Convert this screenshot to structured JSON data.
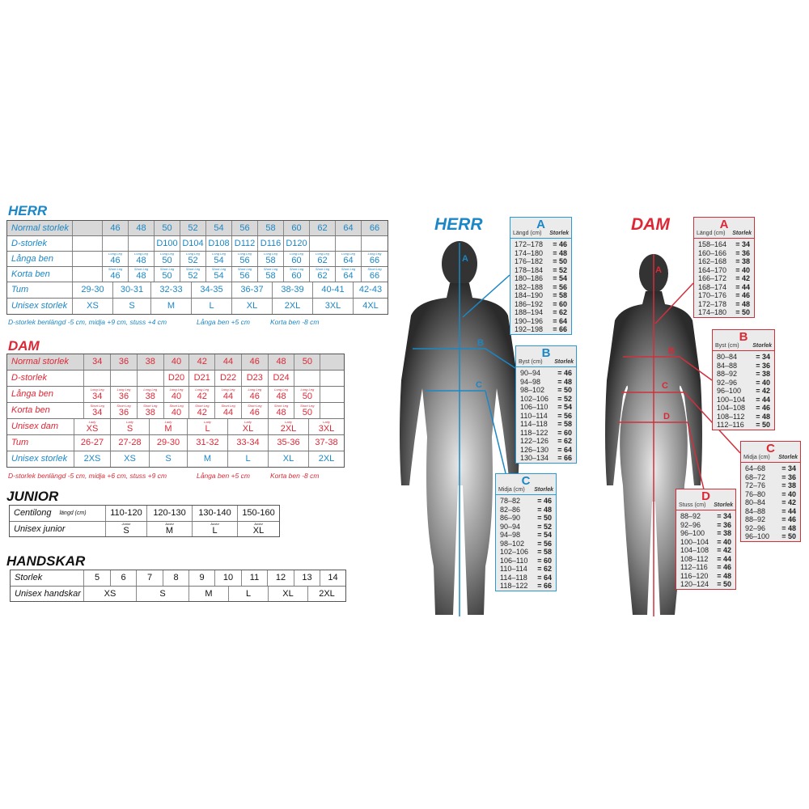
{
  "herr": {
    "title": "HERR",
    "rows": [
      {
        "label": "Normal storlek",
        "cells": [
          "",
          "46",
          "48",
          "50",
          "52",
          "54",
          "56",
          "58",
          "60",
          "62",
          "64",
          "66"
        ]
      },
      {
        "label": "D-storlek",
        "cells": [
          "",
          "",
          "",
          "D100",
          "D104",
          "D108",
          "D112",
          "D116",
          "D120",
          "",
          "",
          ""
        ]
      },
      {
        "label": "Långa ben",
        "cells": [
          "",
          {
            "tag": "Long Leg",
            "value": "46"
          },
          {
            "tag": "Long Leg",
            "value": "48"
          },
          {
            "tag": "Long Leg",
            "value": "50"
          },
          {
            "tag": "Long Leg",
            "value": "52"
          },
          {
            "tag": "Long Leg",
            "value": "54"
          },
          {
            "tag": "Long Leg",
            "value": "56"
          },
          {
            "tag": "Long Leg",
            "value": "58"
          },
          {
            "tag": "Long Leg",
            "value": "60"
          },
          {
            "tag": "Long Leg",
            "value": "62"
          },
          {
            "tag": "Long Leg",
            "value": "64"
          },
          {
            "tag": "Long Leg",
            "value": "66"
          }
        ]
      },
      {
        "label": "Korta ben",
        "cells": [
          "",
          {
            "tag": "Short Leg",
            "value": "46"
          },
          {
            "tag": "Short Leg",
            "value": "48"
          },
          {
            "tag": "Short Leg",
            "value": "50"
          },
          {
            "tag": "Short Leg",
            "value": "52"
          },
          {
            "tag": "Short Leg",
            "value": "54"
          },
          {
            "tag": "Short Leg",
            "value": "56"
          },
          {
            "tag": "Short Leg",
            "value": "58"
          },
          {
            "tag": "Short Leg",
            "value": "60"
          },
          {
            "tag": "Short Leg",
            "value": "62"
          },
          {
            "tag": "Short Leg",
            "value": "64"
          },
          {
            "tag": "Short Leg",
            "value": "66"
          }
        ]
      },
      {
        "label": "Tum",
        "cells": [
          "29-30",
          "30-31",
          "32-33",
          "34-35",
          "36-37",
          "38-39",
          "40-41",
          "42-43"
        ]
      },
      {
        "label": "Unisex storlek",
        "cells": [
          "XS",
          "S",
          "M",
          "L",
          "XL",
          "2XL",
          "3XL",
          "4XL"
        ]
      }
    ],
    "footnotes": [
      "D-storlek benlängd -5 cm, midja +9 cm, stuss +4 cm",
      "Långa ben +5 cm",
      "Korta ben -8 cm"
    ]
  },
  "dam": {
    "title": "DAM",
    "rows": [
      {
        "label": "Normal storlek",
        "cells": [
          "34",
          "36",
          "38",
          "40",
          "42",
          "44",
          "46",
          "48",
          "50",
          ""
        ]
      },
      {
        "label": "D-storlek",
        "cells": [
          "",
          "",
          "",
          "D20",
          "D21",
          "D22",
          "D23",
          "D24",
          "",
          ""
        ]
      },
      {
        "label": "Långa ben",
        "cells": [
          {
            "tag": "Long Leg",
            "value": "34"
          },
          {
            "tag": "Long Leg",
            "value": "36"
          },
          {
            "tag": "Long Leg",
            "value": "38"
          },
          {
            "tag": "Long Leg",
            "value": "40"
          },
          {
            "tag": "Long Leg",
            "value": "42"
          },
          {
            "tag": "Long Leg",
            "value": "44"
          },
          {
            "tag": "Long Leg",
            "value": "46"
          },
          {
            "tag": "Long Leg",
            "value": "48"
          },
          {
            "tag": "Long Leg",
            "value": "50"
          },
          ""
        ]
      },
      {
        "label": "Korta ben",
        "cells": [
          {
            "tag": "Short Leg",
            "value": "34"
          },
          {
            "tag": "Short Leg",
            "value": "36"
          },
          {
            "tag": "Short Leg",
            "value": "38"
          },
          {
            "tag": "Short Leg",
            "value": "40"
          },
          {
            "tag": "Short Leg",
            "value": "42"
          },
          {
            "tag": "Short Leg",
            "value": "44"
          },
          {
            "tag": "Short Leg",
            "value": "46"
          },
          {
            "tag": "Short Leg",
            "value": "48"
          },
          {
            "tag": "Short Leg",
            "value": "50"
          },
          ""
        ]
      },
      {
        "label": "Unisex dam",
        "cells": [
          {
            "tag": "Lady",
            "value": "XS"
          },
          {
            "tag": "Lady",
            "value": "S"
          },
          {
            "tag": "Lady",
            "value": "M"
          },
          {
            "tag": "Lady",
            "value": "L"
          },
          {
            "tag": "Lady",
            "value": "XL"
          },
          {
            "tag": "Lady",
            "value": "2XL"
          },
          {
            "tag": "Lady",
            "value": "3XL"
          }
        ]
      },
      {
        "label": "Tum",
        "cells": [
          "26-27",
          "27-28",
          "29-30",
          "31-32",
          "33-34",
          "35-36",
          "37-38"
        ]
      },
      {
        "label": "Unisex storlek",
        "cells": [
          "2XS",
          "XS",
          "S",
          "M",
          "L",
          "XL",
          "2XL"
        ]
      }
    ],
    "footnotes": [
      "D-storlek benlängd -5 cm, midja +6 cm, stuss +9 cm",
      "Långa ben +5 cm",
      "Korta ben -8 cm"
    ]
  },
  "junior": {
    "title": "JUNIOR",
    "rows": [
      {
        "label": "Centilong",
        "sublabel": "längd (cm)",
        "cells": [
          "110-120",
          "120-130",
          "130-140",
          "150-160"
        ]
      },
      {
        "label": "Unisex junior",
        "cells": [
          {
            "tag": "Junior",
            "value": "S"
          },
          {
            "tag": "Junior",
            "value": "M"
          },
          {
            "tag": "Junior",
            "value": "L"
          },
          {
            "tag": "Junior",
            "value": "XL"
          }
        ]
      }
    ]
  },
  "handskar": {
    "title": "HANDSKAR",
    "rows": [
      {
        "label": "Storlek",
        "cells": [
          "5",
          "6",
          "7",
          "8",
          "9",
          "10",
          "11",
          "12",
          "13",
          "14"
        ]
      },
      {
        "label": "Unisex handskar",
        "cells": [
          "XS",
          "S",
          "M",
          "L",
          "XL",
          "2XL"
        ]
      }
    ]
  },
  "figures": {
    "herr": {
      "title": "HERR",
      "markers": [
        "A",
        "B",
        "C"
      ],
      "boxes": [
        {
          "letter": "A",
          "col1": "Längd (cm)",
          "col2": "Storlek",
          "rows": [
            [
              "172–178",
              "= 46"
            ],
            [
              "174–180",
              "= 48"
            ],
            [
              "176–182",
              "= 50"
            ],
            [
              "178–184",
              "= 52"
            ],
            [
              "180–186",
              "= 54"
            ],
            [
              "182–188",
              "= 56"
            ],
            [
              "184–190",
              "= 58"
            ],
            [
              "186–192",
              "= 60"
            ],
            [
              "188–194",
              "= 62"
            ],
            [
              "190–196",
              "= 64"
            ],
            [
              "192–198",
              "= 66"
            ]
          ]
        },
        {
          "letter": "B",
          "col1": "Byst (cm)",
          "col2": "Storlek",
          "rows": [
            [
              "90–94",
              "= 46"
            ],
            [
              "94–98",
              "= 48"
            ],
            [
              "98–102",
              "= 50"
            ],
            [
              "102–106",
              "= 52"
            ],
            [
              "106–110",
              "= 54"
            ],
            [
              "110–114",
              "= 56"
            ],
            [
              "114–118",
              "= 58"
            ],
            [
              "118–122",
              "= 60"
            ],
            [
              "122–126",
              "= 62"
            ],
            [
              "126–130",
              "= 64"
            ],
            [
              "130–134",
              "= 66"
            ]
          ]
        },
        {
          "letter": "C",
          "col1": "Midja (cm)",
          "col2": "Storlek",
          "rows": [
            [
              "78–82",
              "= 46"
            ],
            [
              "82–86",
              "= 48"
            ],
            [
              "86–90",
              "= 50"
            ],
            [
              "90–94",
              "= 52"
            ],
            [
              "94–98",
              "= 54"
            ],
            [
              "98–102",
              "= 56"
            ],
            [
              "102–106",
              "= 58"
            ],
            [
              "106–110",
              "= 60"
            ],
            [
              "110–114",
              "= 62"
            ],
            [
              "114–118",
              "= 64"
            ],
            [
              "118–122",
              "= 66"
            ]
          ]
        }
      ]
    },
    "dam": {
      "title": "DAM",
      "markers": [
        "A",
        "B",
        "C",
        "D"
      ],
      "boxes": [
        {
          "letter": "A",
          "col1": "Längd (cm)",
          "col2": "Storlek",
          "rows": [
            [
              "158–164",
              "= 34"
            ],
            [
              "160–166",
              "= 36"
            ],
            [
              "162–168",
              "= 38"
            ],
            [
              "164–170",
              "= 40"
            ],
            [
              "166–172",
              "= 42"
            ],
            [
              "168–174",
              "= 44"
            ],
            [
              "170–176",
              "= 46"
            ],
            [
              "172–178",
              "= 48"
            ],
            [
              "174–180",
              "= 50"
            ]
          ]
        },
        {
          "letter": "B",
          "col1": "Byst (cm)",
          "col2": "Storlek",
          "rows": [
            [
              "80–84",
              "= 34"
            ],
            [
              "84–88",
              "= 36"
            ],
            [
              "88–92",
              "= 38"
            ],
            [
              "92–96",
              "= 40"
            ],
            [
              "96–100",
              "= 42"
            ],
            [
              "100–104",
              "= 44"
            ],
            [
              "104–108",
              "= 46"
            ],
            [
              "108–112",
              "= 48"
            ],
            [
              "112–116",
              "= 50"
            ]
          ]
        },
        {
          "letter": "C",
          "col1": "Midja (cm)",
          "col2": "Storlek",
          "rows": [
            [
              "64–68",
              "= 34"
            ],
            [
              "68–72",
              "= 36"
            ],
            [
              "72–76",
              "= 38"
            ],
            [
              "76–80",
              "= 40"
            ],
            [
              "80–84",
              "= 42"
            ],
            [
              "84–88",
              "= 44"
            ],
            [
              "88–92",
              "= 46"
            ],
            [
              "92–96",
              "= 48"
            ],
            [
              "96–100",
              "= 50"
            ]
          ]
        },
        {
          "letter": "D",
          "col1": "Stuss (cm)",
          "col2": "Storlek",
          "rows": [
            [
              "88–92",
              "= 34"
            ],
            [
              "92–96",
              "= 36"
            ],
            [
              "96–100",
              "= 38"
            ],
            [
              "100–104",
              "= 40"
            ],
            [
              "104–108",
              "= 42"
            ],
            [
              "108–112",
              "= 44"
            ],
            [
              "112–116",
              "= 46"
            ],
            [
              "116–120",
              "= 48"
            ],
            [
              "120–124",
              "= 50"
            ]
          ]
        }
      ]
    },
    "colors": {
      "herr": "#1b87c6",
      "dam": "#dc2836"
    }
  }
}
